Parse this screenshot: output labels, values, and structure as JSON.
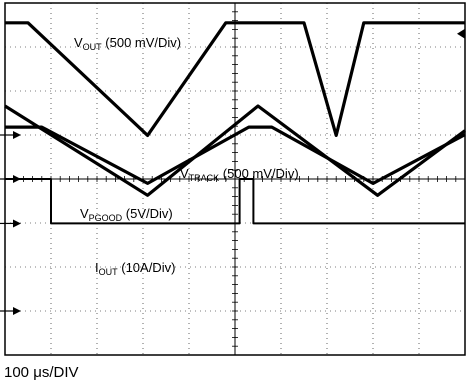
{
  "chart_data": {
    "type": "line",
    "timebase": "100 μs/DIV",
    "grid": true,
    "divisions": {
      "x": 10,
      "y": 8
    },
    "x_unit": "div",
    "series": [
      {
        "name": "VOUT (500 mV/Div)",
        "label_main": "V",
        "label_sub": "OUT",
        "label_rest": " (500 mV/Div)",
        "x": [
          0,
          0.5,
          3.1,
          4.8,
          6.5,
          7.2,
          7.8,
          10
        ],
        "y": [
          3.55,
          3.55,
          0.99,
          3.55,
          3.55,
          0.99,
          3.55,
          3.55
        ]
      },
      {
        "name": "VTRACK (500 mV/Div)",
        "label_main": "V",
        "label_sub": "TRACK",
        "label_rest": " (500 mV/Div)",
        "x": [
          0,
          3.1,
          5.5,
          8.1,
          10
        ],
        "y": [
          1.66,
          -0.37,
          1.66,
          -0.37,
          1.1
        ]
      },
      {
        "name": "VPGOOD (5V/Div)",
        "label_main": "V",
        "label_sub": "PGOOD",
        "label_rest": " (5V/Div)",
        "x": [
          0,
          1.0,
          1.0,
          5.1,
          5.1,
          5.4,
          5.4,
          8.0,
          10
        ],
        "y": [
          0,
          0,
          -1.01,
          -1.01,
          0,
          0,
          -1.01,
          -1.01,
          -1.01
        ]
      },
      {
        "name": "IOUT (10A/Div)",
        "label_main": "I",
        "label_sub": "OUT",
        "label_rest": " (10A/Div)",
        "x": [
          0,
          0.8,
          3.1,
          5.3,
          5.8,
          8.0,
          10
        ],
        "y": [
          1.18,
          1.18,
          -0.1,
          1.18,
          1.18,
          -0.1,
          1.01
        ]
      }
    ],
    "ground_markers": [
      "1",
      "2",
      "3",
      "4"
    ]
  }
}
